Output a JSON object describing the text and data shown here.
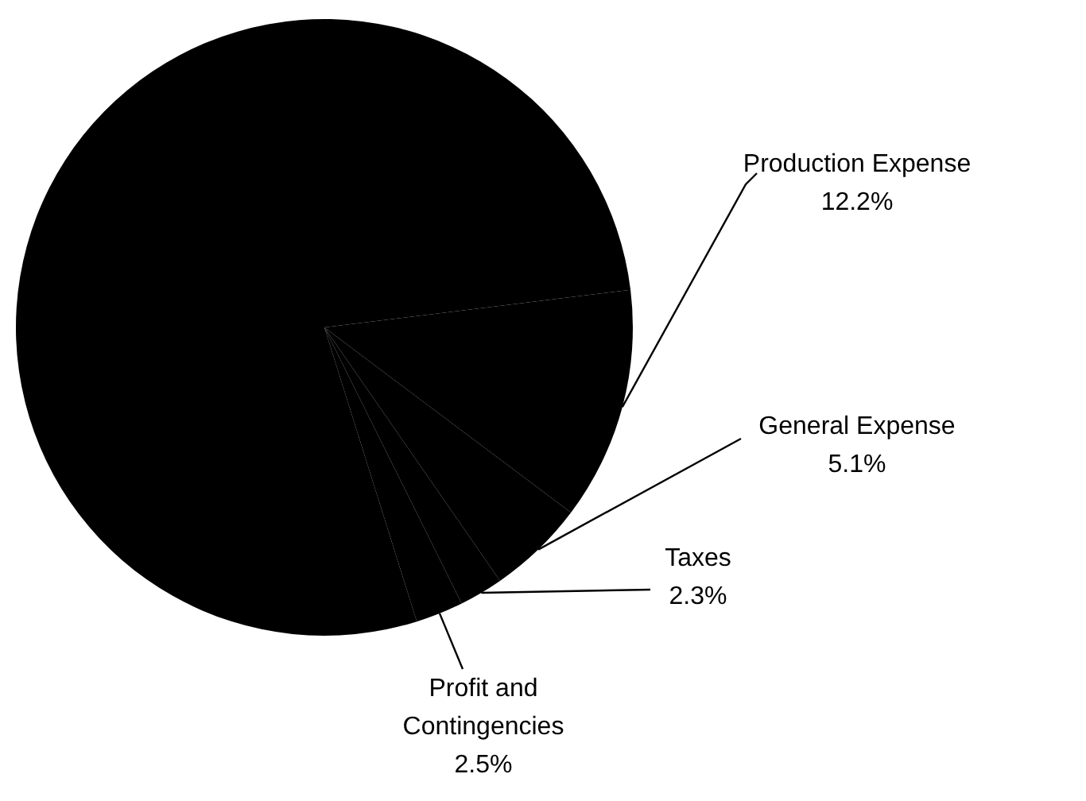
{
  "chart_data": {
    "type": "pie",
    "categories": [
      "Production Expense",
      "General Expense",
      "Taxes",
      "Profit and Contingencies",
      null
    ],
    "values": [
      12.2,
      5.1,
      2.3,
      2.5,
      77.9
    ],
    "colors": [
      "#000000",
      "#000000",
      "#000000",
      "#000000",
      "#000000"
    ],
    "value_labels": [
      "12.2%",
      "5.1%",
      "2.3%",
      "2.5%",
      null
    ]
  }
}
